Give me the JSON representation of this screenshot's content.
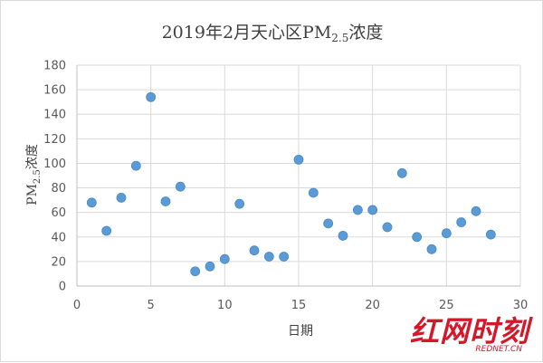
{
  "chart_data": {
    "type": "scatter",
    "title": "2019年2月天心区PM",
    "title_subscript": "2.5",
    "title_suffix": "浓度",
    "xlabel": "日期",
    "ylabel_prefix": "PM",
    "ylabel_subscript": "2.5",
    "ylabel_suffix": "浓度",
    "xlim": [
      0,
      30
    ],
    "ylim": [
      0,
      180
    ],
    "xticks": [
      0,
      5,
      10,
      15,
      20,
      25,
      30
    ],
    "yticks": [
      0,
      20,
      40,
      60,
      80,
      100,
      120,
      140,
      160,
      180
    ],
    "grid": true,
    "marker_color": "#5b9bd5",
    "points": [
      {
        "x": 1,
        "y": 68
      },
      {
        "x": 2,
        "y": 45
      },
      {
        "x": 3,
        "y": 72
      },
      {
        "x": 4,
        "y": 98
      },
      {
        "x": 5,
        "y": 154
      },
      {
        "x": 6,
        "y": 69
      },
      {
        "x": 7,
        "y": 81
      },
      {
        "x": 8,
        "y": 12
      },
      {
        "x": 9,
        "y": 16
      },
      {
        "x": 10,
        "y": 22
      },
      {
        "x": 11,
        "y": 67
      },
      {
        "x": 12,
        "y": 29
      },
      {
        "x": 13,
        "y": 24
      },
      {
        "x": 14,
        "y": 24
      },
      {
        "x": 15,
        "y": 103
      },
      {
        "x": 16,
        "y": 76
      },
      {
        "x": 17,
        "y": 51
      },
      {
        "x": 18,
        "y": 41
      },
      {
        "x": 19,
        "y": 62
      },
      {
        "x": 20,
        "y": 62
      },
      {
        "x": 21,
        "y": 48
      },
      {
        "x": 22,
        "y": 92
      },
      {
        "x": 23,
        "y": 40
      },
      {
        "x": 24,
        "y": 30
      },
      {
        "x": 25,
        "y": 43
      },
      {
        "x": 26,
        "y": 52
      },
      {
        "x": 27,
        "y": 61
      },
      {
        "x": 28,
        "y": 42
      }
    ]
  },
  "watermark": {
    "logo_text": "红网时刻",
    "sub_text": "REDNET.CN",
    "color": "#d4182a"
  }
}
